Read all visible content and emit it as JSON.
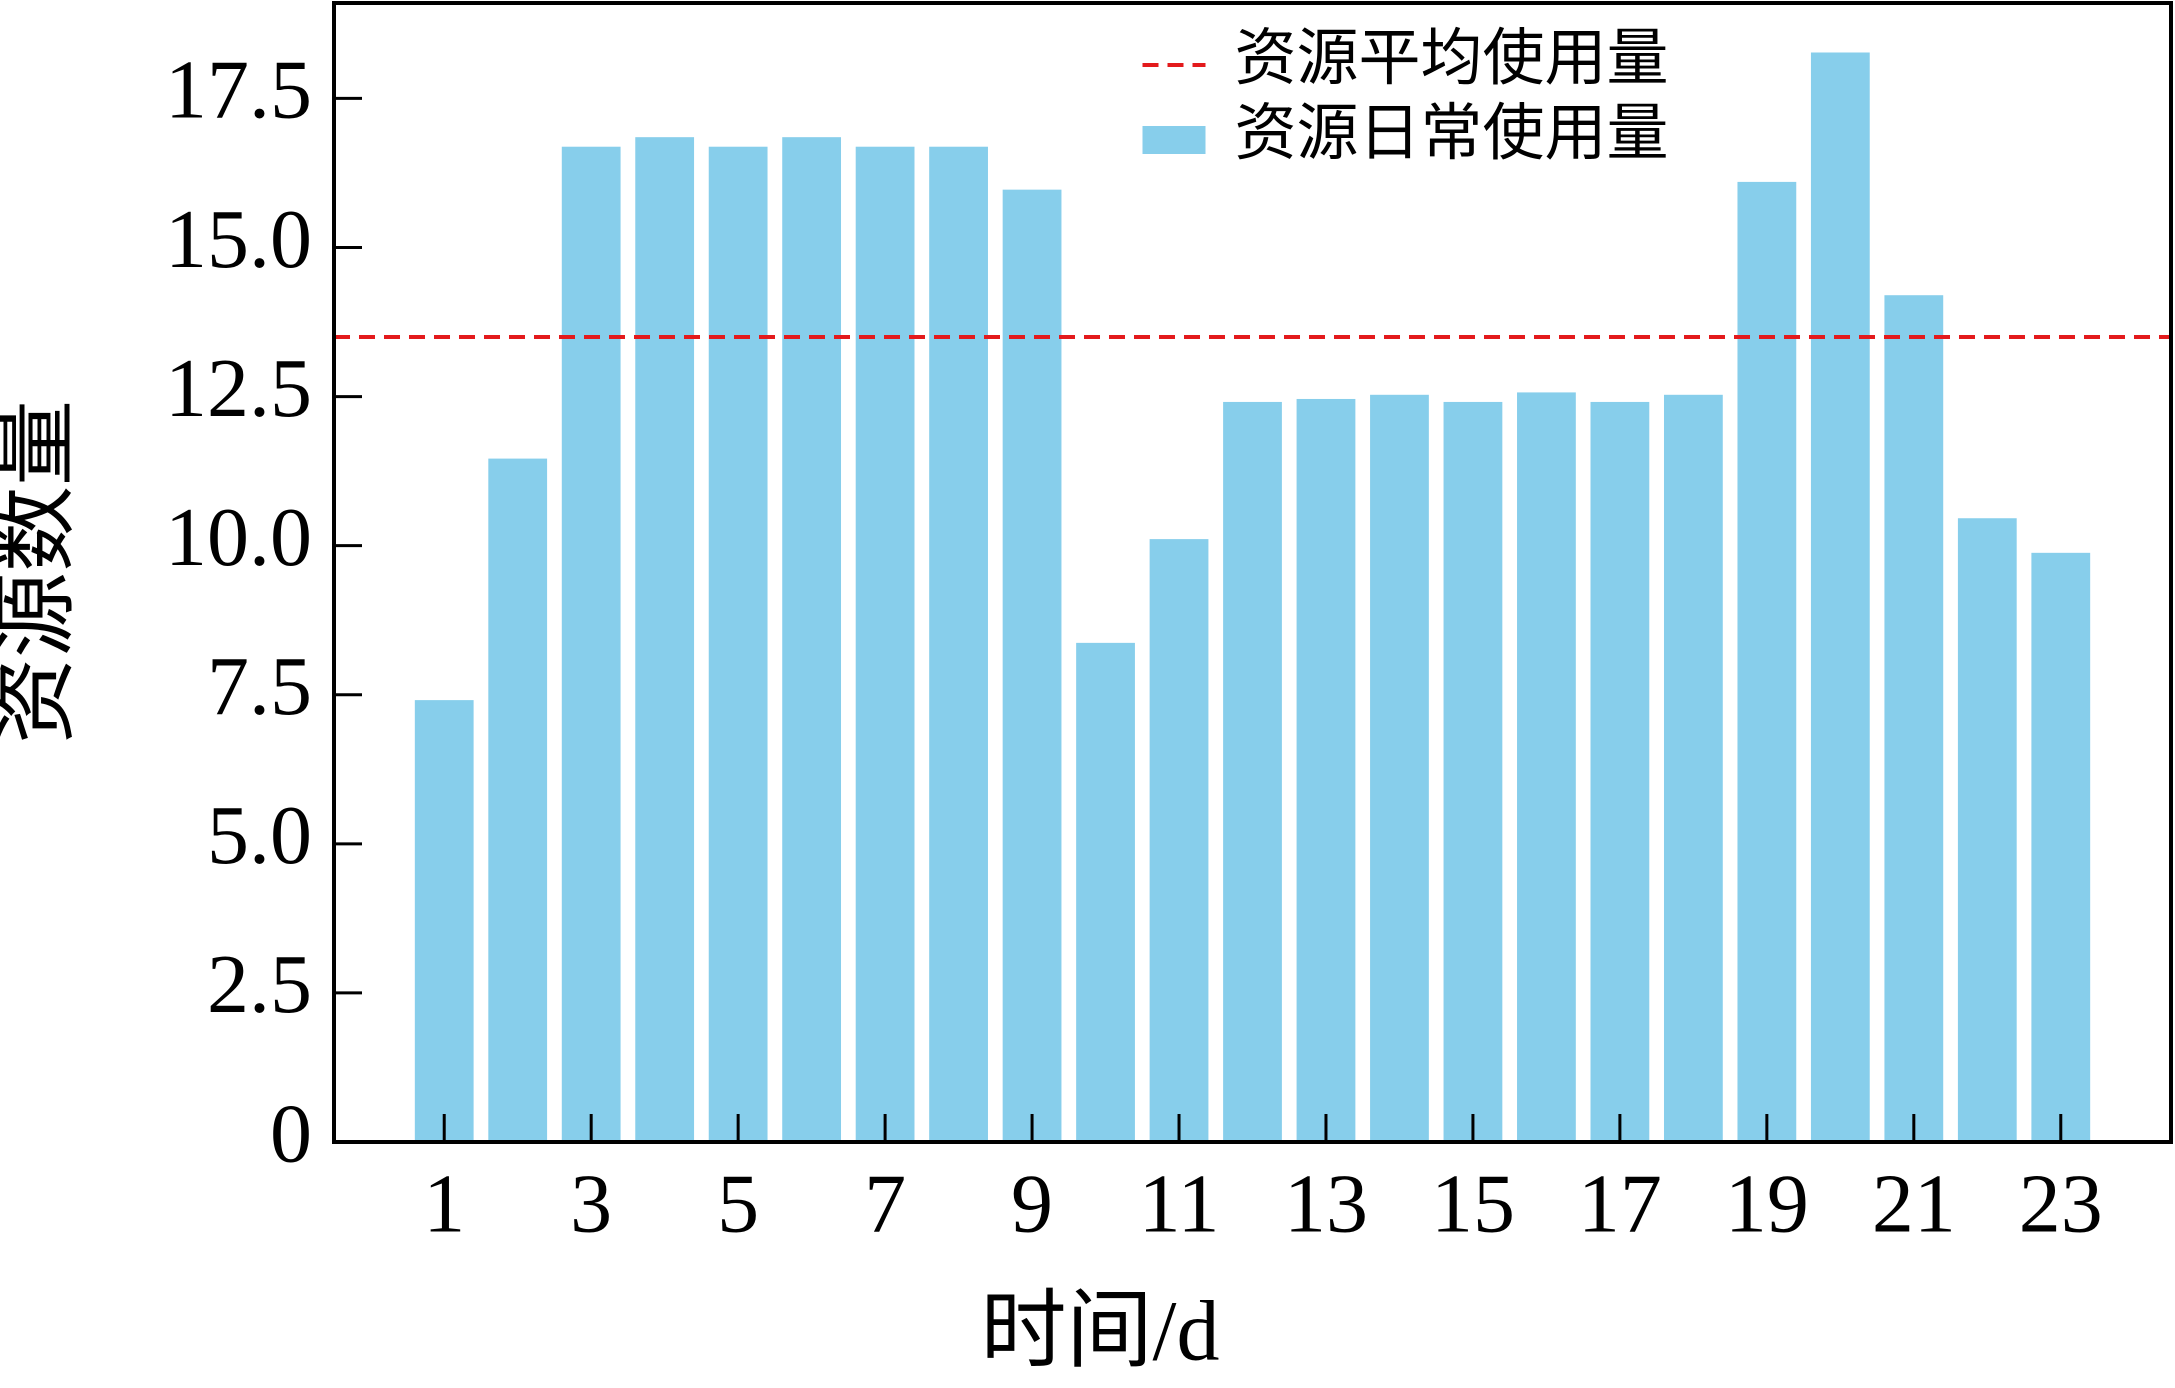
{
  "chart_data": {
    "type": "bar",
    "x_label": "时间/d",
    "y_label": "资源数量",
    "x": [
      1,
      2,
      3,
      4,
      5,
      6,
      7,
      8,
      9,
      10,
      11,
      12,
      13,
      14,
      15,
      16,
      17,
      18,
      19,
      20,
      21,
      22,
      23
    ],
    "series": [
      {
        "name": "资源日常使用量",
        "color": "#87ceeb",
        "values": [
          7.41,
          11.46,
          16.69,
          16.85,
          16.69,
          16.85,
          16.69,
          16.69,
          15.97,
          8.37,
          10.11,
          12.41,
          12.46,
          12.53,
          12.41,
          12.57,
          12.41,
          12.53,
          16.1,
          18.27,
          14.2,
          10.46,
          9.88
        ]
      }
    ],
    "reference_line": {
      "name": "资源平均使用量",
      "value": 13.5,
      "color": "#e31a1c",
      "style": "dashed"
    },
    "xlim": [
      -0.5,
      24.5
    ],
    "ylim": [
      0,
      19.1
    ],
    "xticks": [
      1,
      3,
      5,
      7,
      9,
      11,
      13,
      15,
      17,
      19,
      21,
      23
    ],
    "yticks": [
      0,
      2.5,
      {
        "value": 5,
        "label": "5.0"
      },
      7.5,
      {
        "value": 10,
        "label": "10.0"
      },
      12.5,
      {
        "value": 15,
        "label": "15.0"
      },
      17.5
    ],
    "legend": "upper center",
    "grid": false
  }
}
